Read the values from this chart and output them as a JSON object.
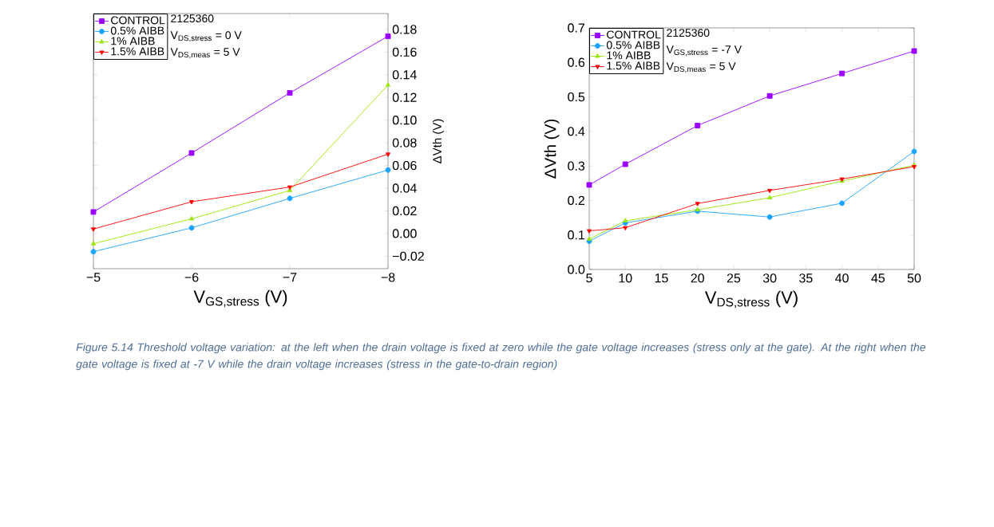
{
  "chart_data": [
    {
      "type": "line",
      "xlabel": "V$_{GS,stress}$ (V)",
      "ylabel": "ΔVth (V)",
      "x": [
        -5,
        -6,
        -7,
        -8
      ],
      "xlim": [
        -5,
        -8
      ],
      "xticks": [
        {
          "value": -5,
          "label": "−5"
        },
        {
          "value": -6,
          "label": "−6"
        },
        {
          "value": -7,
          "label": "−7"
        },
        {
          "value": -8,
          "label": "−8"
        }
      ],
      "ylim": [
        -0.031,
        0.194
      ],
      "yticks": [
        {
          "value": -0.02,
          "label": "−0.02"
        },
        {
          "value": 0,
          "label": "0.00"
        },
        {
          "value": 0.02,
          "label": "0.02"
        },
        {
          "value": 0.04,
          "label": "0.04"
        },
        {
          "value": 0.06,
          "label": "0.06"
        },
        {
          "value": 0.08,
          "label": "0.08"
        },
        {
          "value": 0.1,
          "label": "0.10"
        },
        {
          "value": 0.12,
          "label": "0.12"
        },
        {
          "value": 0.14,
          "label": "0.14"
        },
        {
          "value": 0.16,
          "label": "0.16"
        },
        {
          "value": 0.18,
          "label": "0.18"
        }
      ],
      "series": [
        {
          "name": "CONTROL",
          "color": "#9b00ff",
          "marker": "square",
          "values": [
            0.019,
            0.071,
            0.124,
            0.174
          ]
        },
        {
          "name": "0.5% AIBB",
          "color": "#1aa3ff",
          "marker": "circle",
          "values": [
            -0.016,
            0.005,
            0.031,
            0.056
          ]
        },
        {
          "name": "1% AIBB",
          "color": "#99e600",
          "marker": "triangle",
          "values": [
            -0.009,
            0.013,
            0.038,
            0.131
          ]
        },
        {
          "name": "1.5% AIBB",
          "color": "#ff0000",
          "marker": "triangle down",
          "values": [
            0.004,
            0.028,
            0.041,
            0.07
          ]
        }
      ],
      "legend": "top left",
      "grid": false,
      "annotations": [
        "2125360",
        "V$_{DS,stress}$ = 0 V",
        "V$_{DS,meas}$ = 5 V",
        "Figure 5.14 Threshold voltage variation: at the left when the drain voltage is fixed at zero while the gate voltage increases (stress only at the gate). At the right when the gate voltage is fixed at -7 V while the drain voltage increases (stress in the gate-to-drain region)"
      ]
    },
    {
      "type": "line",
      "xlabel": "V$_{DS,stress}$ (V)",
      "ylabel": "ΔVth (V)",
      "x": [
        5,
        10,
        20,
        30,
        40,
        50
      ],
      "xlim": [
        5,
        50
      ],
      "xticks": [
        5,
        10,
        15,
        20,
        25,
        30,
        35,
        40,
        45,
        50
      ],
      "ylim": [
        0,
        0.7
      ],
      "yticks": [
        {
          "value": 0,
          "label": "0.0"
        },
        0.1,
        0.2,
        0.3,
        0.4,
        0.5,
        0.6,
        0.7
      ],
      "series": [
        {
          "name": "CONTROL",
          "color": "#9b00ff",
          "marker": "square",
          "values": [
            0.245,
            0.305,
            0.417,
            0.503,
            0.568,
            0.633
          ]
        },
        {
          "name": "0.5% AIBB",
          "color": "#1aa3ff",
          "marker": "circle",
          "values": [
            0.082,
            0.135,
            0.169,
            0.152,
            0.192,
            0.342
          ]
        },
        {
          "name": "1% AIBB",
          "color": "#99e600",
          "marker": "triangle",
          "values": [
            0.088,
            0.141,
            0.173,
            0.208,
            0.256,
            0.302
          ]
        },
        {
          "name": "1.5% AIBB",
          "color": "#ff0000",
          "marker": "triangle down",
          "values": [
            0.112,
            0.121,
            0.191,
            0.229,
            0.262,
            0.298
          ]
        }
      ],
      "legend": "top left",
      "grid": false,
      "annotations": [
        "2125360",
        "V$_{GS,stress}$ = -7 V",
        "V$_{DS,meas}$ = 5 V"
      ]
    }
  ]
}
